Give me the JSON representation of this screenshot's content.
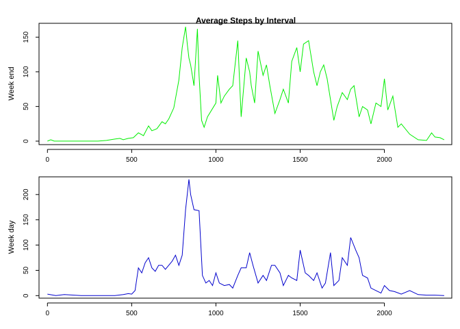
{
  "title": "Average Steps by Interval",
  "chart_data": [
    {
      "type": "line",
      "title": "Average Steps by Interval",
      "xlabel": "",
      "ylabel": "Week end",
      "color": "#00ee00",
      "xlim": [
        -50,
        2400
      ],
      "ylim": [
        -5,
        170
      ],
      "xticks": [
        0,
        500,
        1000,
        1500,
        2000
      ],
      "yticks": [
        0,
        50,
        100,
        150
      ],
      "x": [
        0,
        20,
        40,
        300,
        350,
        400,
        430,
        450,
        480,
        510,
        540,
        570,
        600,
        620,
        650,
        680,
        700,
        720,
        750,
        780,
        800,
        820,
        830,
        840,
        850,
        870,
        890,
        900,
        915,
        930,
        950,
        1000,
        1010,
        1030,
        1050,
        1080,
        1100,
        1130,
        1150,
        1180,
        1200,
        1210,
        1230,
        1250,
        1280,
        1300,
        1320,
        1350,
        1380,
        1400,
        1430,
        1450,
        1480,
        1500,
        1520,
        1550,
        1580,
        1600,
        1620,
        1640,
        1660,
        1700,
        1720,
        1750,
        1780,
        1800,
        1820,
        1850,
        1870,
        1900,
        1920,
        1950,
        1980,
        2000,
        2020,
        2050,
        2080,
        2100,
        2150,
        2200,
        2250,
        2280,
        2300,
        2330,
        2355
      ],
      "y": [
        0,
        2,
        0,
        0,
        1,
        3,
        4,
        2,
        4,
        5,
        12,
        8,
        22,
        15,
        18,
        28,
        25,
        32,
        48,
        88,
        135,
        165,
        140,
        120,
        110,
        80,
        162,
        95,
        30,
        20,
        35,
        55,
        95,
        55,
        65,
        75,
        80,
        145,
        35,
        120,
        100,
        80,
        55,
        130,
        95,
        110,
        80,
        40,
        60,
        75,
        55,
        115,
        135,
        100,
        140,
        145,
        100,
        80,
        100,
        110,
        90,
        30,
        50,
        70,
        60,
        75,
        80,
        35,
        50,
        45,
        25,
        55,
        50,
        90,
        45,
        65,
        20,
        25,
        10,
        2,
        1,
        12,
        6,
        5,
        2
      ]
    },
    {
      "type": "line",
      "title": "",
      "xlabel": "",
      "ylabel": "Week day",
      "color": "#0000cc",
      "xlim": [
        -50,
        2400
      ],
      "ylim": [
        -5,
        235
      ],
      "xticks": [
        0,
        500,
        1000,
        1500,
        2000
      ],
      "yticks": [
        0,
        50,
        100,
        150,
        200
      ],
      "x": [
        0,
        50,
        100,
        200,
        300,
        400,
        450,
        480,
        500,
        520,
        540,
        560,
        580,
        600,
        620,
        640,
        660,
        680,
        700,
        720,
        740,
        760,
        780,
        800,
        820,
        840,
        850,
        870,
        900,
        920,
        940,
        960,
        980,
        1000,
        1020,
        1050,
        1080,
        1100,
        1130,
        1150,
        1180,
        1200,
        1220,
        1250,
        1280,
        1300,
        1330,
        1350,
        1380,
        1400,
        1430,
        1450,
        1480,
        1500,
        1530,
        1550,
        1580,
        1600,
        1630,
        1650,
        1680,
        1700,
        1730,
        1750,
        1780,
        1800,
        1830,
        1850,
        1870,
        1900,
        1920,
        1950,
        1980,
        2000,
        2030,
        2060,
        2100,
        2150,
        2200,
        2250,
        2300,
        2355
      ],
      "y": [
        3,
        0,
        2,
        0,
        0,
        0,
        2,
        4,
        3,
        10,
        55,
        45,
        65,
        75,
        55,
        48,
        60,
        60,
        52,
        60,
        68,
        80,
        60,
        80,
        170,
        230,
        200,
        170,
        168,
        40,
        25,
        30,
        20,
        45,
        25,
        20,
        22,
        15,
        40,
        55,
        55,
        85,
        60,
        25,
        40,
        30,
        60,
        60,
        45,
        20,
        40,
        35,
        30,
        90,
        45,
        40,
        30,
        45,
        15,
        25,
        85,
        20,
        30,
        75,
        60,
        115,
        90,
        75,
        40,
        35,
        15,
        10,
        5,
        20,
        10,
        8,
        3,
        10,
        2,
        1,
        1,
        0
      ]
    }
  ]
}
